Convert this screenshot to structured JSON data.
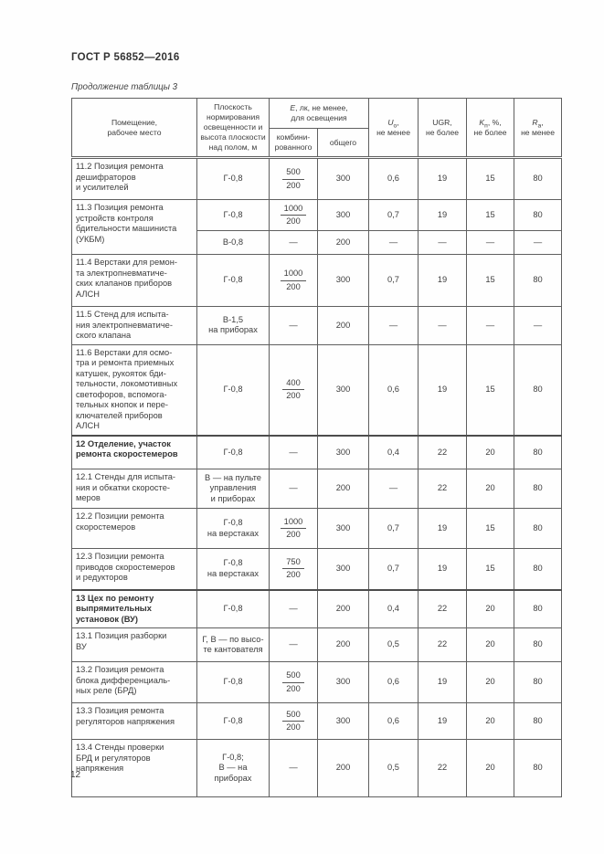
{
  "page": {
    "doc_code": "ГОСТ Р 56852—2016",
    "table_caption": "Продолжение таблицы 3",
    "page_number": "12"
  },
  "table": {
    "header": {
      "room": "Помещение,\nрабочее место",
      "plane": "Плоскость\nнормирования\nосвещенности и\nвысота плоскости\nнад полом, м",
      "e": {
        "sym": "E",
        "rest": ", лк, не менее,",
        "line2": "для освещения"
      },
      "combined": "комбини-\nрованного",
      "general": "общего",
      "u0": {
        "sym": "U",
        "sub": "о",
        "rest": ",",
        "line2": "не менее"
      },
      "ugr": {
        "line1": "UGR,",
        "line2": "не более"
      },
      "kp": {
        "sym": "K",
        "sub": "п",
        "rest": ", %,",
        "line2": "не более"
      },
      "ra": {
        "sym": "R",
        "sub": "а",
        "rest": ",",
        "line2": "не менее"
      }
    },
    "rows": [
      {
        "name": "11.2 Позиция ремонта\nдешифраторов\nи усилителей",
        "plane": "Г-0,8",
        "combined": {
          "num": "500",
          "den": "200"
        },
        "general": "300",
        "u0": "0,6",
        "ugr": "19",
        "kp": "15",
        "ra": "80"
      },
      {
        "name": "11.3 Позиция ремонта\nустройств контроля\nбдительности машиниста\n(УКБМ)",
        "name_rowspan": 2,
        "plane": "Г-0,8",
        "combined": {
          "num": "1000",
          "den": "200"
        },
        "general": "300",
        "u0": "0,7",
        "ugr": "19",
        "kp": "15",
        "ra": "80"
      },
      {
        "plane": "В-0,8",
        "combined": "—",
        "general": "200",
        "u0": "—",
        "ugr": "—",
        "kp": "—",
        "ra": "—"
      },
      {
        "name": "11.4 Верстаки для ремон-\nта электропневматиче-\nских клапанов приборов\nАЛСН",
        "plane": "Г-0,8",
        "combined": {
          "num": "1000",
          "den": "200"
        },
        "general": "300",
        "u0": "0,7",
        "ugr": "19",
        "kp": "15",
        "ra": "80"
      },
      {
        "name": "11.5 Стенд для испыта-\nния электропневматиче-\nского клапана",
        "plane": "В-1,5\nна приборах",
        "combined": "—",
        "general": "200",
        "u0": "—",
        "ugr": "—",
        "kp": "—",
        "ra": "—"
      },
      {
        "name": "11.6 Верстаки для осмо-\nтра и ремонта приемных\nкатушек, рукояток бди-\nтельности, локомотивных\nсветофоров, вспомога-\nтельных кнопок и пере-\nключателей приборов\nАЛСН",
        "plane": "Г-0,8",
        "combined": {
          "num": "400",
          "den": "200"
        },
        "general": "300",
        "u0": "0,6",
        "ugr": "19",
        "kp": "15",
        "ra": "80"
      },
      {
        "name": "12 Отделение, участок\nремонта скоростемеров",
        "section": true,
        "plane": "Г-0,8",
        "combined": "—",
        "general": "300",
        "u0": "0,4",
        "ugr": "22",
        "kp": "20",
        "ra": "80"
      },
      {
        "name": "12.1 Стенды для испыта-\nния и обкатки скоросте-\nмеров",
        "plane": "В — на пульте\nуправления\nи приборах",
        "combined": "—",
        "general": "200",
        "u0": "—",
        "ugr": "22",
        "kp": "20",
        "ra": "80"
      },
      {
        "name": "12.2 Позиции ремонта\nскоростемеров",
        "plane": "Г-0,8\nна верстаках",
        "combined": {
          "num": "1000",
          "den": "200"
        },
        "general": "300",
        "u0": "0,7",
        "ugr": "19",
        "kp": "15",
        "ra": "80"
      },
      {
        "name": "12.3 Позиции ремонта\nприводов скоростемеров\nи редукторов",
        "plane": "Г-0,8\nна верстаках",
        "combined": {
          "num": "750",
          "den": "200"
        },
        "general": "300",
        "u0": "0,7",
        "ugr": "19",
        "kp": "15",
        "ra": "80"
      },
      {
        "name": "13 Цех по ремонту\nвыпрямительных\nустановок (ВУ)",
        "section": true,
        "plane": "Г-0,8",
        "combined": "—",
        "general": "200",
        "u0": "0,4",
        "ugr": "22",
        "kp": "20",
        "ra": "80"
      },
      {
        "name": "13.1 Позиция разборки\nВУ",
        "plane": "Г, В — по высо-\nте кантователя",
        "combined": "—",
        "general": "200",
        "u0": "0,5",
        "ugr": "22",
        "kp": "20",
        "ra": "80"
      },
      {
        "name": "13.2 Позиция ремонта\nблока дифференциаль-\nных реле (БРД)",
        "plane": "Г-0,8",
        "combined": {
          "num": "500",
          "den": "200"
        },
        "general": "300",
        "u0": "0,6",
        "ugr": "19",
        "kp": "20",
        "ra": "80"
      },
      {
        "name": "13.3 Позиция ремонта\nрегуляторов напряжения",
        "plane": "Г-0,8",
        "combined": {
          "num": "500",
          "den": "200"
        },
        "general": "300",
        "u0": "0,6",
        "ugr": "19",
        "kp": "20",
        "ra": "80"
      },
      {
        "name": "13.4 Стенды проверки\nБРД и регуляторов\nнапряжения",
        "plane": "Г-0,8;\nВ — на приборах",
        "combined": "—",
        "general": "200",
        "u0": "0,5",
        "ugr": "22",
        "kp": "20",
        "ra": "80"
      }
    ]
  }
}
